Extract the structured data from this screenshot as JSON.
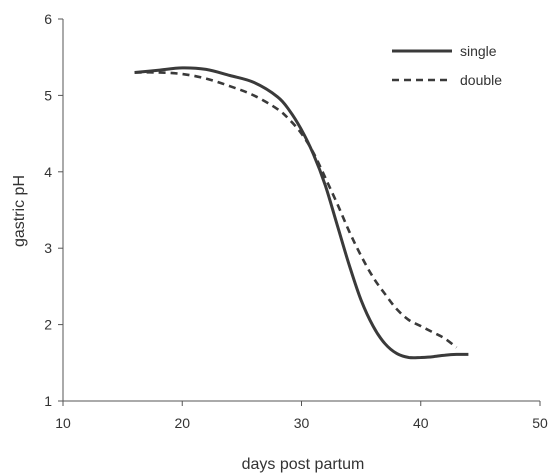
{
  "chart_data": {
    "type": "line",
    "title": "",
    "xlabel": "days post partum",
    "ylabel": "gastric pH",
    "xlim": [
      10,
      50
    ],
    "ylim": [
      1,
      6
    ],
    "xticks": [
      10,
      20,
      30,
      40,
      50
    ],
    "yticks": [
      1,
      2,
      3,
      4,
      5,
      6
    ],
    "grid": false,
    "legend_position": "top-right",
    "series": [
      {
        "name": "single",
        "style": "solid",
        "color": "#3a3a3a",
        "x": [
          16,
          18,
          20,
          22,
          24,
          26,
          28,
          29,
          30,
          31,
          32,
          33,
          34,
          35,
          36,
          37,
          38,
          39,
          40,
          41,
          42,
          43,
          44
        ],
        "y": [
          5.3,
          5.33,
          5.36,
          5.34,
          5.26,
          5.17,
          4.98,
          4.8,
          4.55,
          4.23,
          3.82,
          3.3,
          2.78,
          2.32,
          1.98,
          1.75,
          1.62,
          1.57,
          1.57,
          1.58,
          1.6,
          1.61,
          1.61
        ]
      },
      {
        "name": "double",
        "style": "dashed",
        "color": "#3a3a3a",
        "x": [
          16,
          18,
          20,
          22,
          24,
          26,
          28,
          29,
          30,
          31,
          32,
          33,
          34,
          35,
          36,
          37,
          38,
          39,
          40,
          41,
          42,
          43
        ],
        "y": [
          5.3,
          5.3,
          5.28,
          5.22,
          5.12,
          5.0,
          4.82,
          4.68,
          4.5,
          4.25,
          3.92,
          3.58,
          3.22,
          2.9,
          2.62,
          2.4,
          2.2,
          2.06,
          1.98,
          1.9,
          1.82,
          1.7
        ]
      }
    ]
  }
}
